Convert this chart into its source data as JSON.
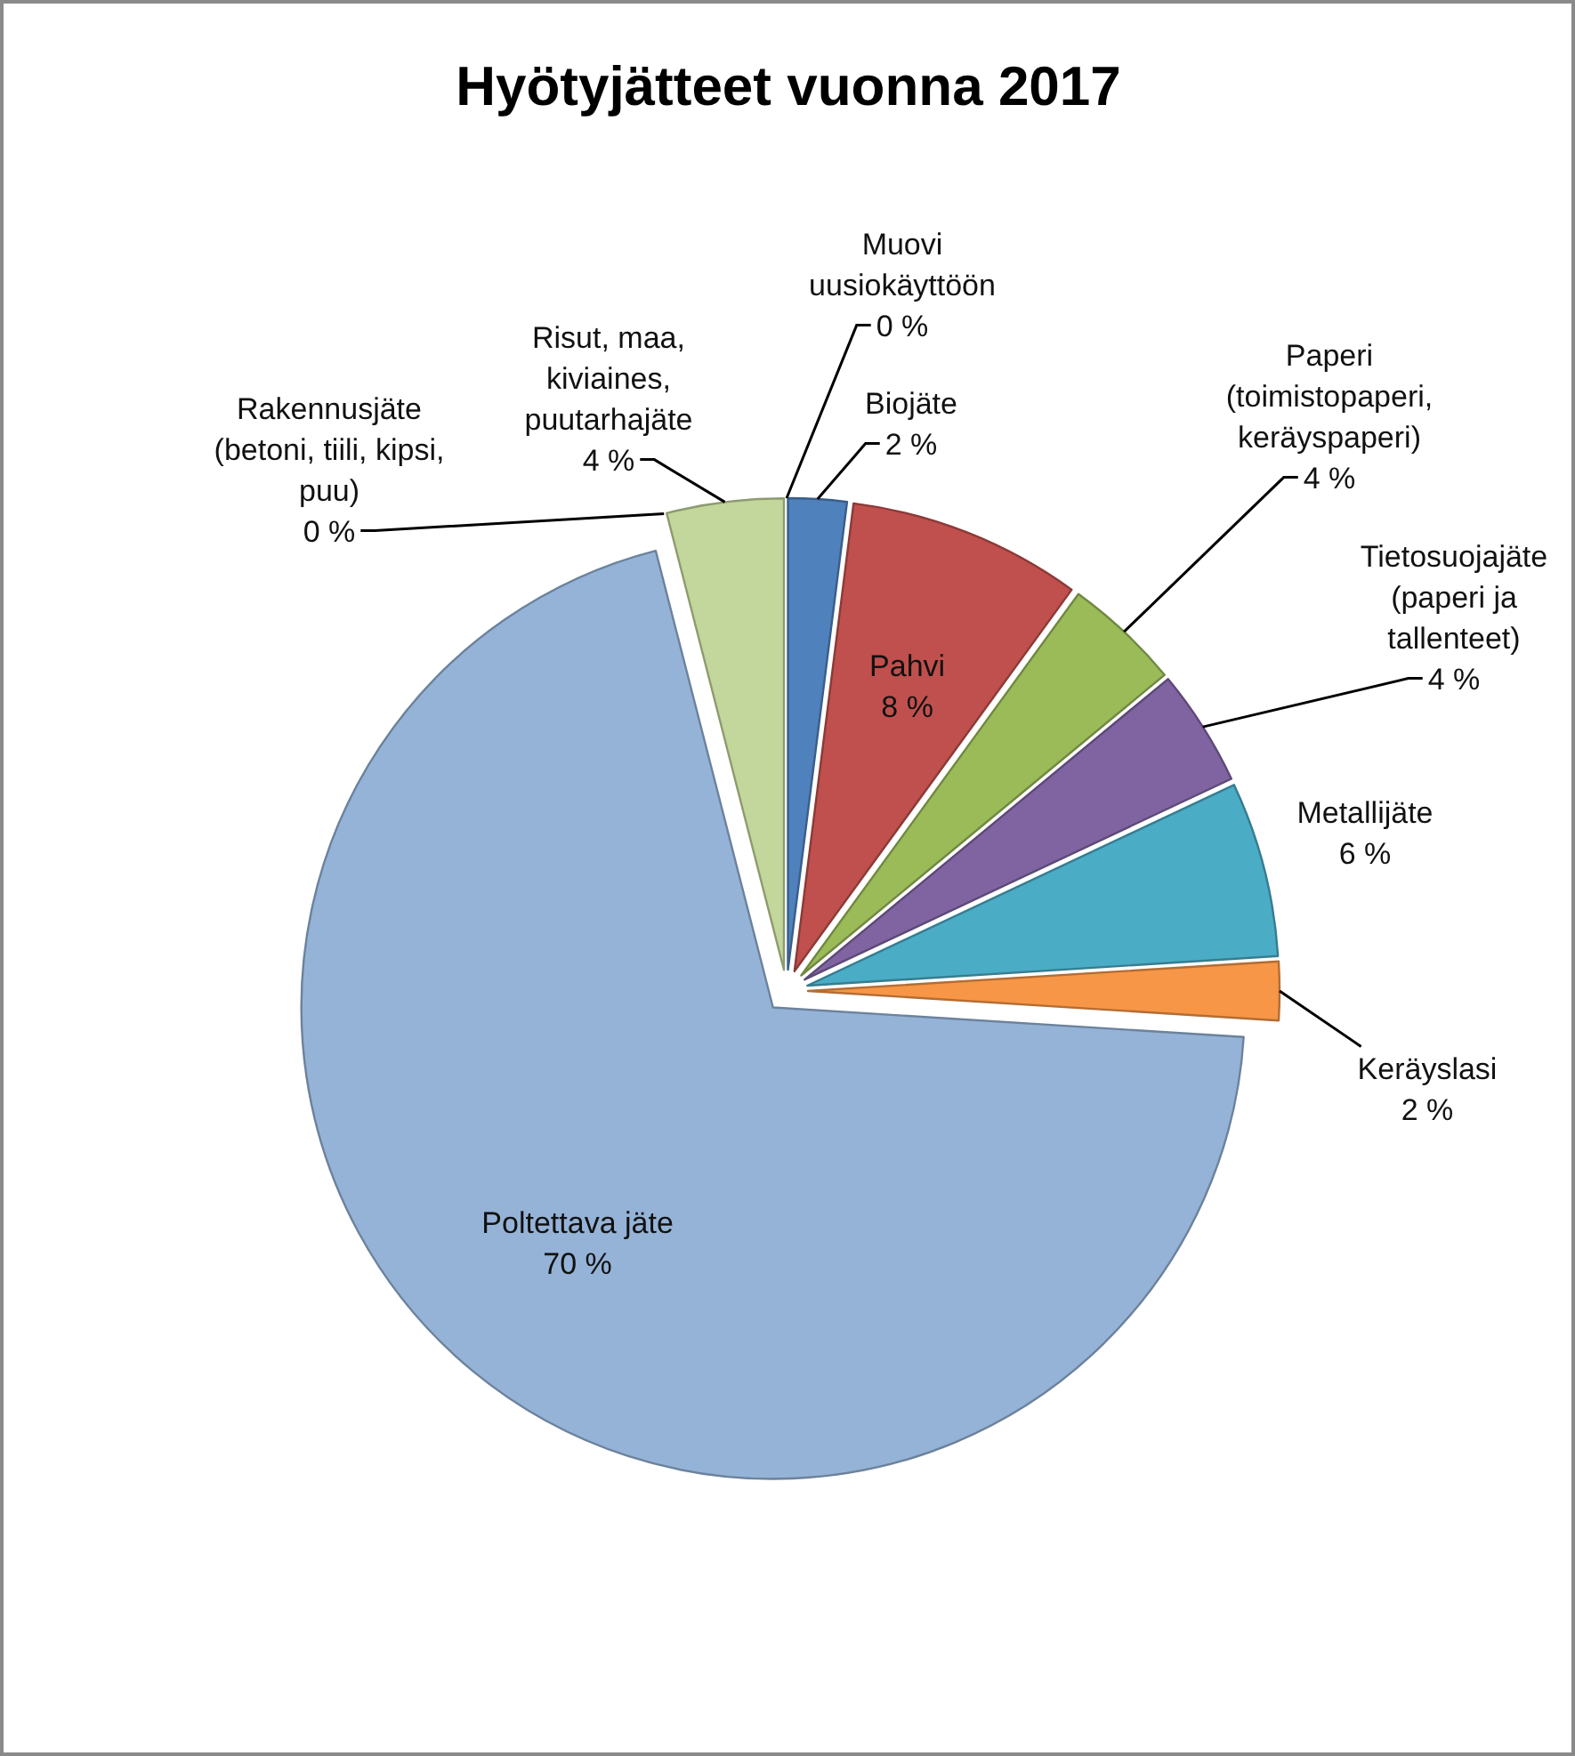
{
  "chart_data": {
    "type": "pie",
    "title": "Hyötyjätteet vuonna 2017",
    "categories": [
      "Muovi uusiokäyttöön",
      "Biojäte",
      "Pahvi",
      "Paperi (toimistopaperi, keräyspaperi)",
      "Tietosuojajäte (paperi ja tallenteet)",
      "Metallijäte",
      "Keräyslasi",
      "Poltettava jäte",
      "Rakennusjäte (betoni, tiili, kipsi, puu)",
      "Risut, maa, kiviaines, puutarhajäte"
    ],
    "values": [
      0,
      2,
      8,
      4,
      4,
      6,
      2,
      70,
      0,
      4
    ],
    "value_labels": [
      "0 %",
      "2 %",
      "8 %",
      "4 %",
      "4 %",
      "6 %",
      "2 %",
      "70 %",
      "0 %",
      "4 %"
    ],
    "colors": [
      null,
      "#4f81bd",
      "#c0504d",
      "#9bbb59",
      "#8064a2",
      "#4bacc6",
      "#f79646",
      "#95b3d7",
      null,
      "#c3d69b"
    ]
  }
}
